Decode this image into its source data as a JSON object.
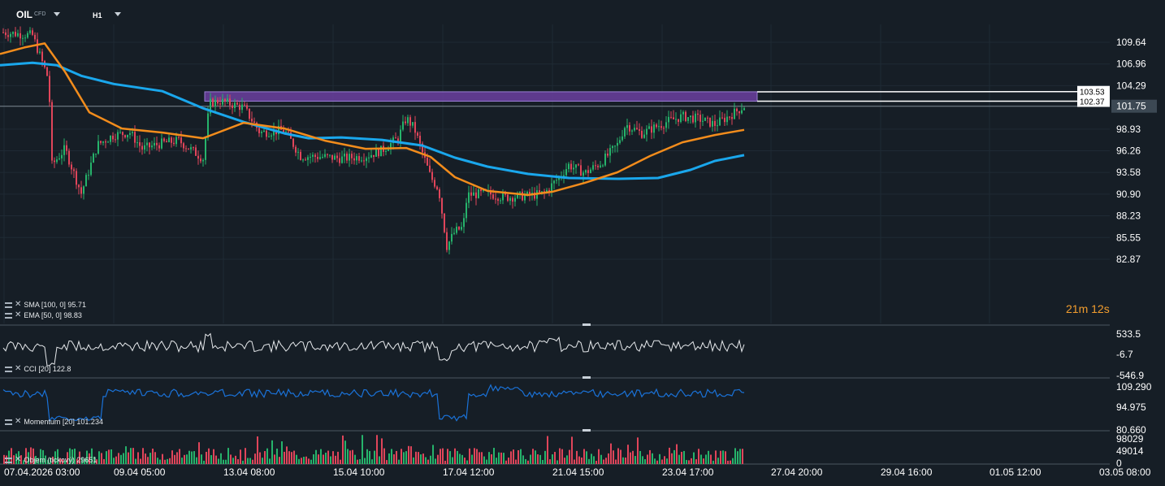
{
  "toolbar": {
    "symbol": "OIL",
    "symbol_type": "CFD",
    "timeframe": "H1"
  },
  "price_axis": {
    "labels": [
      "109.64",
      "106.96",
      "104.29",
      "101.75",
      "98.93",
      "96.26",
      "93.58",
      "90.90",
      "88.23",
      "85.55",
      "82.87"
    ],
    "current_price": "101.75",
    "zone_top_label": "103.53",
    "zone_bottom_label": "102.37"
  },
  "time_axis": {
    "labels": [
      "07.04.2026 03:00",
      "09.04 05:00",
      "13.04 08:00",
      "15.04 10:00",
      "17.04 12:00",
      "21.04 15:00",
      "23.04 17:00",
      "27.04 20:00",
      "29.04 16:00",
      "01.05 12:00",
      "03.05 08:00"
    ]
  },
  "countdown": {
    "minutes": "21",
    "minutes_unit": "m",
    "seconds": "12",
    "seconds_unit": "s"
  },
  "indicators": {
    "sma": {
      "label": "SMA [100, 0] 95.71",
      "color": "#1aa7ec"
    },
    "ema": {
      "label": "EMA [50, 0] 98.83",
      "color": "#f28c1c"
    },
    "cci": {
      "label": "CCI [20] 122.8",
      "axis": [
        "533.5",
        "-6.7",
        "-546.9"
      ],
      "color": "#e6e9ec"
    },
    "momentum": {
      "label": "Momentum [20] 101.234",
      "axis": [
        "109.290",
        "94.975",
        "80.660"
      ],
      "color": "#1a72d8"
    },
    "volume": {
      "label": "Objem (tickový) 29651",
      "axis": [
        "98029",
        "49014",
        "0"
      ]
    }
  },
  "colors": {
    "background": "#161e26",
    "bull": "#26b36b",
    "bear": "#e0455a",
    "zone_fill": "#6b3fa0",
    "grid": "#24303b"
  },
  "chart_data": {
    "type": "candlestick",
    "instrument": "OIL",
    "timeframe": "H1",
    "y_range": [
      82.87,
      111.5
    ],
    "key_levels": {
      "current": 101.75,
      "zone_top": 103.53,
      "zone_bottom": 102.37
    },
    "trend_path": [
      [
        0,
        110.9
      ],
      [
        20,
        110.7
      ],
      [
        40,
        110.5
      ],
      [
        60,
        105.0
      ],
      [
        64,
        94.5
      ],
      [
        80,
        96.5
      ],
      [
        100,
        91.0
      ],
      [
        120,
        97.0
      ],
      [
        140,
        98.2
      ],
      [
        160,
        98.5
      ],
      [
        175,
        96.5
      ],
      [
        200,
        97.2
      ],
      [
        220,
        97.5
      ],
      [
        250,
        95.3
      ],
      [
        258,
        102.1
      ],
      [
        270,
        102.4
      ],
      [
        300,
        101.6
      ],
      [
        320,
        98.5
      ],
      [
        350,
        98.8
      ],
      [
        370,
        95.6
      ],
      [
        400,
        95.5
      ],
      [
        420,
        95.3
      ],
      [
        450,
        95.6
      ],
      [
        470,
        96.3
      ],
      [
        490,
        97.8
      ],
      [
        500,
        100.3
      ],
      [
        510,
        99.0
      ],
      [
        530,
        93.0
      ],
      [
        540,
        91.5
      ],
      [
        550,
        84.5
      ],
      [
        560,
        86.3
      ],
      [
        570,
        86.8
      ],
      [
        575,
        90.8
      ],
      [
        600,
        91.0
      ],
      [
        620,
        90.5
      ],
      [
        650,
        90.7
      ],
      [
        670,
        91.0
      ],
      [
        690,
        93.2
      ],
      [
        700,
        94.5
      ],
      [
        720,
        93.5
      ],
      [
        740,
        94.8
      ],
      [
        760,
        97.0
      ],
      [
        770,
        99.5
      ],
      [
        790,
        98.4
      ],
      [
        820,
        99.8
      ],
      [
        840,
        100.5
      ],
      [
        860,
        100.2
      ],
      [
        880,
        99.5
      ],
      [
        900,
        100.7
      ],
      [
        916,
        101.75
      ]
    ],
    "ema_path": [
      [
        0,
        108.2
      ],
      [
        30,
        109.0
      ],
      [
        55,
        109.5
      ],
      [
        80,
        106.0
      ],
      [
        110,
        101.0
      ],
      [
        150,
        99.0
      ],
      [
        200,
        98.5
      ],
      [
        250,
        97.8
      ],
      [
        300,
        99.7
      ],
      [
        350,
        99.0
      ],
      [
        400,
        97.5
      ],
      [
        450,
        96.5
      ],
      [
        500,
        96.6
      ],
      [
        530,
        95.5
      ],
      [
        560,
        93.0
      ],
      [
        600,
        91.3
      ],
      [
        650,
        90.8
      ],
      [
        680,
        91.2
      ],
      [
        720,
        92.3
      ],
      [
        760,
        93.6
      ],
      [
        800,
        95.6
      ],
      [
        840,
        97.3
      ],
      [
        880,
        98.2
      ],
      [
        916,
        98.83
      ]
    ],
    "sma_path": [
      [
        0,
        106.8
      ],
      [
        40,
        107.1
      ],
      [
        70,
        106.8
      ],
      [
        100,
        105.5
      ],
      [
        140,
        104.5
      ],
      [
        200,
        103.6
      ],
      [
        250,
        101.5
      ],
      [
        300,
        99.8
      ],
      [
        350,
        98.4
      ],
      [
        380,
        97.8
      ],
      [
        420,
        97.9
      ],
      [
        470,
        97.6
      ],
      [
        520,
        96.9
      ],
      [
        560,
        95.4
      ],
      [
        600,
        94.3
      ],
      [
        650,
        93.4
      ],
      [
        700,
        92.9
      ],
      [
        760,
        92.8
      ],
      [
        810,
        92.9
      ],
      [
        850,
        93.9
      ],
      [
        880,
        95.0
      ],
      [
        916,
        95.71
      ]
    ]
  }
}
